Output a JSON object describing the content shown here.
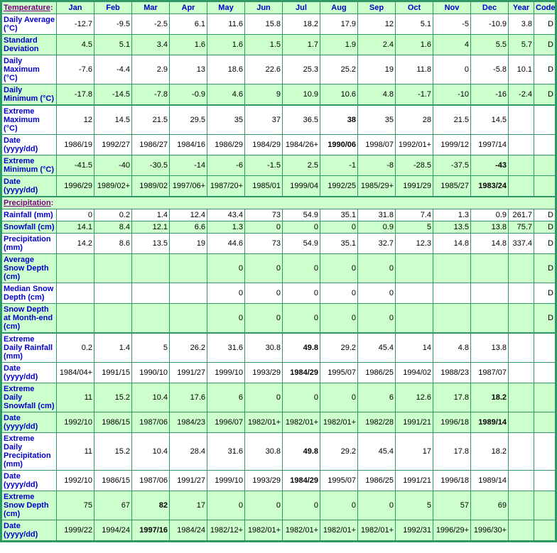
{
  "colors": {
    "row_green": "#CCFFCC",
    "row_white": "#FFFFFF",
    "border_green": "#2E9966",
    "label_blue": "#0000CC",
    "link_purple": "#800080",
    "value_black": "#000000"
  },
  "table": {
    "temperature_section": {
      "label": "Temperature",
      "colon": ":"
    },
    "columns": [
      "Jan",
      "Feb",
      "Mar",
      "Apr",
      "May",
      "Jun",
      "Jul",
      "Aug",
      "Sep",
      "Oct",
      "Nov",
      "Dec",
      "Year",
      "Code"
    ],
    "rows": [
      {
        "kind": "data",
        "id": "daily-average",
        "label": "Daily Average (°C)",
        "shade": false,
        "thick_top": false,
        "bold": [],
        "values": [
          "-12.7",
          "-9.5",
          "-2.5",
          "6.1",
          "11.6",
          "15.8",
          "18.2",
          "17.9",
          "12",
          "5.1",
          "-5",
          "-10.9",
          "3.8",
          "D"
        ]
      },
      {
        "kind": "data",
        "id": "standard-deviation",
        "label": "Standard Deviation",
        "shade": true,
        "thick_top": false,
        "bold": [],
        "values": [
          "4.5",
          "5.1",
          "3.4",
          "1.6",
          "1.6",
          "1.5",
          "1.7",
          "1.9",
          "2.4",
          "1.6",
          "4",
          "5.5",
          "5.7",
          "D"
        ]
      },
      {
        "kind": "data",
        "id": "daily-maximum",
        "label": "Daily Maximum (°C)",
        "shade": false,
        "thick_top": false,
        "bold": [],
        "values": [
          "-7.6",
          "-4.4",
          "2.9",
          "13",
          "18.6",
          "22.6",
          "25.3",
          "25.2",
          "19",
          "11.8",
          "0",
          "-5.8",
          "10.1",
          "D"
        ]
      },
      {
        "kind": "data",
        "id": "daily-minimum",
        "label": "Daily Minimum (°C)",
        "shade": true,
        "thick_top": false,
        "bold": [],
        "values": [
          "-17.8",
          "-14.5",
          "-7.8",
          "-0.9",
          "4.6",
          "9",
          "10.9",
          "10.6",
          "4.8",
          "-1.7",
          "-10",
          "-16",
          "-2.4",
          "D"
        ]
      },
      {
        "kind": "data",
        "id": "extreme-maximum",
        "label": "Extreme Maximum (°C)",
        "shade": false,
        "thick_top": true,
        "bold": [
          7
        ],
        "values": [
          "12",
          "14.5",
          "21.5",
          "29.5",
          "35",
          "37",
          "36.5",
          "38",
          "35",
          "28",
          "21.5",
          "14.5",
          "",
          ""
        ]
      },
      {
        "kind": "data",
        "id": "extreme-maximum-date",
        "label": "Date (yyyy/dd)",
        "shade": false,
        "thick_top": false,
        "bold": [
          7
        ],
        "values": [
          "1986/19",
          "1992/27",
          "1986/27",
          "1984/16",
          "1986/29",
          "1984/29",
          "1984/26+",
          "1990/06",
          "1998/07",
          "1992/01+",
          "1999/12",
          "1997/14",
          "",
          ""
        ]
      },
      {
        "kind": "data",
        "id": "extreme-minimum",
        "label": "Extreme Minimum (°C)",
        "shade": true,
        "thick_top": false,
        "bold": [
          11
        ],
        "values": [
          "-41.5",
          "-40",
          "-30.5",
          "-14",
          "-6",
          "-1.5",
          "2.5",
          "-1",
          "-8",
          "-28.5",
          "-37.5",
          "-43",
          "",
          ""
        ]
      },
      {
        "kind": "data",
        "id": "extreme-minimum-date",
        "label": "Date (yyyy/dd)",
        "shade": true,
        "thick_top": false,
        "bold": [
          11
        ],
        "values": [
          "1996/29",
          "1989/02+",
          "1989/02",
          "1997/06+",
          "1987/20+",
          "1985/01",
          "1999/04",
          "1992/25",
          "1985/29+",
          "1991/29",
          "1985/27",
          "1983/24",
          "",
          ""
        ]
      },
      {
        "kind": "section",
        "id": "precipitation-section",
        "label": "Precipitation",
        "colon": ":",
        "shade": true,
        "thick_top": true
      },
      {
        "kind": "data",
        "id": "rainfall",
        "label": "Rainfall (mm)",
        "shade": false,
        "thick_top": false,
        "bold": [],
        "values": [
          "0",
          "0.2",
          "1.4",
          "12.4",
          "43.4",
          "73",
          "54.9",
          "35.1",
          "31.8",
          "7.4",
          "1.3",
          "0.9",
          "261.7",
          "D"
        ]
      },
      {
        "kind": "data",
        "id": "snowfall",
        "label": "Snowfall (cm)",
        "shade": true,
        "thick_top": false,
        "bold": [],
        "values": [
          "14.1",
          "8.4",
          "12.1",
          "6.6",
          "1.3",
          "0",
          "0",
          "0",
          "0.9",
          "5",
          "13.5",
          "13.8",
          "75.7",
          "D"
        ]
      },
      {
        "kind": "data",
        "id": "precipitation",
        "label": "Precipitation (mm)",
        "shade": false,
        "thick_top": false,
        "bold": [],
        "values": [
          "14.2",
          "8.6",
          "13.5",
          "19",
          "44.6",
          "73",
          "54.9",
          "35.1",
          "32.7",
          "12.3",
          "14.8",
          "14.8",
          "337.4",
          "D"
        ]
      },
      {
        "kind": "data",
        "id": "average-snow-depth",
        "label": "Average Snow Depth (cm)",
        "shade": true,
        "thick_top": false,
        "bold": [],
        "values": [
          "",
          "",
          "",
          "",
          "0",
          "0",
          "0",
          "0",
          "0",
          "",
          "",
          "",
          "",
          "D"
        ]
      },
      {
        "kind": "data",
        "id": "median-snow-depth",
        "label": "Median Snow Depth (cm)",
        "shade": false,
        "thick_top": false,
        "bold": [],
        "values": [
          "",
          "",
          "",
          "",
          "0",
          "0",
          "0",
          "0",
          "0",
          "",
          "",
          "",
          "",
          "D"
        ]
      },
      {
        "kind": "data",
        "id": "snow-depth-month-end",
        "label": "Snow Depth at Month-end (cm)",
        "shade": true,
        "thick_top": false,
        "bold": [],
        "values": [
          "",
          "",
          "",
          "",
          "0",
          "0",
          "0",
          "0",
          "0",
          "",
          "",
          "",
          "",
          "D"
        ]
      },
      {
        "kind": "data",
        "id": "extreme-daily-rainfall",
        "label": "Extreme Daily Rainfall (mm)",
        "shade": false,
        "thick_top": true,
        "bold": [
          6
        ],
        "values": [
          "0.2",
          "1.4",
          "5",
          "26.2",
          "31.6",
          "30.8",
          "49.8",
          "29.2",
          "45.4",
          "14",
          "4.8",
          "13.8",
          "",
          ""
        ]
      },
      {
        "kind": "data",
        "id": "extreme-daily-rainfall-date",
        "label": "Date (yyyy/dd)",
        "shade": false,
        "thick_top": false,
        "bold": [
          6
        ],
        "values": [
          "1984/04+",
          "1991/15",
          "1990/10",
          "1991/27",
          "1999/10",
          "1993/29",
          "1984/29",
          "1995/07",
          "1986/25",
          "1994/02",
          "1988/23",
          "1987/07",
          "",
          ""
        ]
      },
      {
        "kind": "data",
        "id": "extreme-daily-snowfall",
        "label": "Extreme Daily Snowfall (cm)",
        "shade": true,
        "thick_top": false,
        "bold": [
          11
        ],
        "values": [
          "11",
          "15.2",
          "10.4",
          "17.6",
          "6",
          "0",
          "0",
          "0",
          "6",
          "12.6",
          "17.8",
          "18.2",
          "",
          ""
        ]
      },
      {
        "kind": "data",
        "id": "extreme-daily-snowfall-date",
        "label": "Date (yyyy/dd)",
        "shade": true,
        "thick_top": false,
        "bold": [
          11
        ],
        "values": [
          "1992/10",
          "1986/15",
          "1987/06",
          "1984/23",
          "1996/07",
          "1982/01+",
          "1982/01+",
          "1982/01+",
          "1982/28",
          "1991/21",
          "1996/18",
          "1989/14",
          "",
          ""
        ]
      },
      {
        "kind": "data",
        "id": "extreme-daily-precipitation",
        "label": "Extreme Daily Precipitation (mm)",
        "shade": false,
        "thick_top": false,
        "bold": [
          6
        ],
        "values": [
          "11",
          "15.2",
          "10.4",
          "28.4",
          "31.6",
          "30.8",
          "49.8",
          "29.2",
          "45.4",
          "17",
          "17.8",
          "18.2",
          "",
          ""
        ]
      },
      {
        "kind": "data",
        "id": "extreme-daily-precipitation-date",
        "label": "Date (yyyy/dd)",
        "shade": false,
        "thick_top": false,
        "bold": [
          6
        ],
        "values": [
          "1992/10",
          "1986/15",
          "1987/06",
          "1991/27",
          "1999/10",
          "1993/29",
          "1984/29",
          "1995/07",
          "1986/25",
          "1991/21",
          "1996/18",
          "1989/14",
          "",
          ""
        ]
      },
      {
        "kind": "data",
        "id": "extreme-snow-depth",
        "label": "Extreme Snow Depth (cm)",
        "shade": true,
        "thick_top": false,
        "bold": [
          2
        ],
        "values": [
          "75",
          "67",
          "82",
          "17",
          "0",
          "0",
          "0",
          "0",
          "0",
          "5",
          "57",
          "69",
          "",
          ""
        ]
      },
      {
        "kind": "data",
        "id": "extreme-snow-depth-date",
        "label": "Date (yyyy/dd)",
        "shade": true,
        "thick_top": false,
        "bold": [
          2
        ],
        "values": [
          "1999/22",
          "1994/24",
          "1997/16",
          "1984/24",
          "1982/12+",
          "1982/01+",
          "1982/01+",
          "1982/01+",
          "1982/01+",
          "1992/31",
          "1996/29+",
          "1996/30+",
          "",
          ""
        ]
      }
    ]
  }
}
